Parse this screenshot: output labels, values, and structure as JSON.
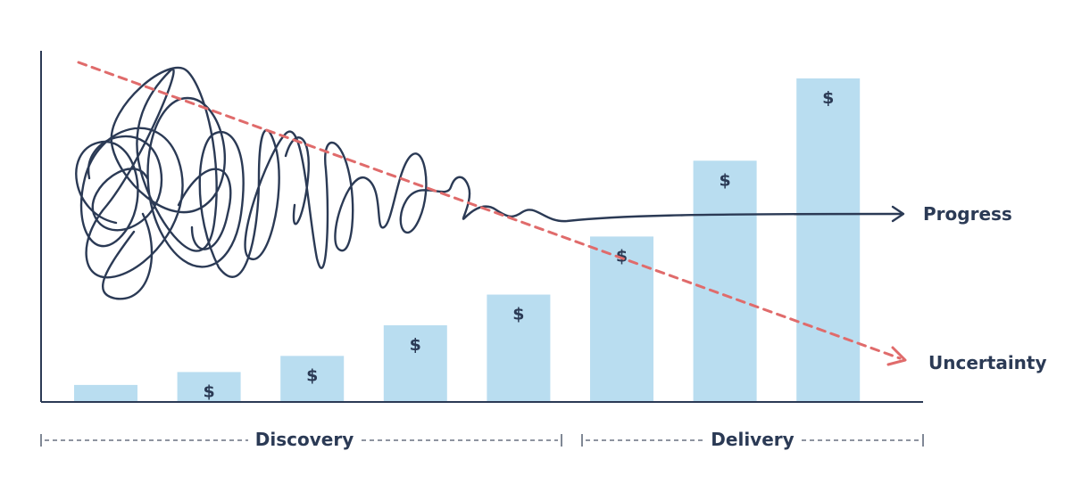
{
  "bars": [
    {
      "level": 0.05,
      "label": ""
    },
    {
      "level": 0.09,
      "label": "$"
    },
    {
      "level": 0.14,
      "label": "$"
    },
    {
      "level": 0.235,
      "label": "$"
    },
    {
      "level": 0.33,
      "label": "$"
    },
    {
      "level": 0.51,
      "label": "$"
    },
    {
      "level": 0.745,
      "label": "$"
    },
    {
      "level": 1.0,
      "label": "$"
    }
  ],
  "lines": {
    "progress": {
      "label": "Progress",
      "color": "#2b3a55"
    },
    "uncertainty": {
      "label": "Uncertainty",
      "color": "#e06b6b"
    }
  },
  "phases": [
    {
      "label": "Discovery"
    },
    {
      "label": "Delivery"
    }
  ],
  "colors": {
    "bar": "#b9ddf0",
    "text": "#2b3a55",
    "axis": "#2b3a55"
  }
}
